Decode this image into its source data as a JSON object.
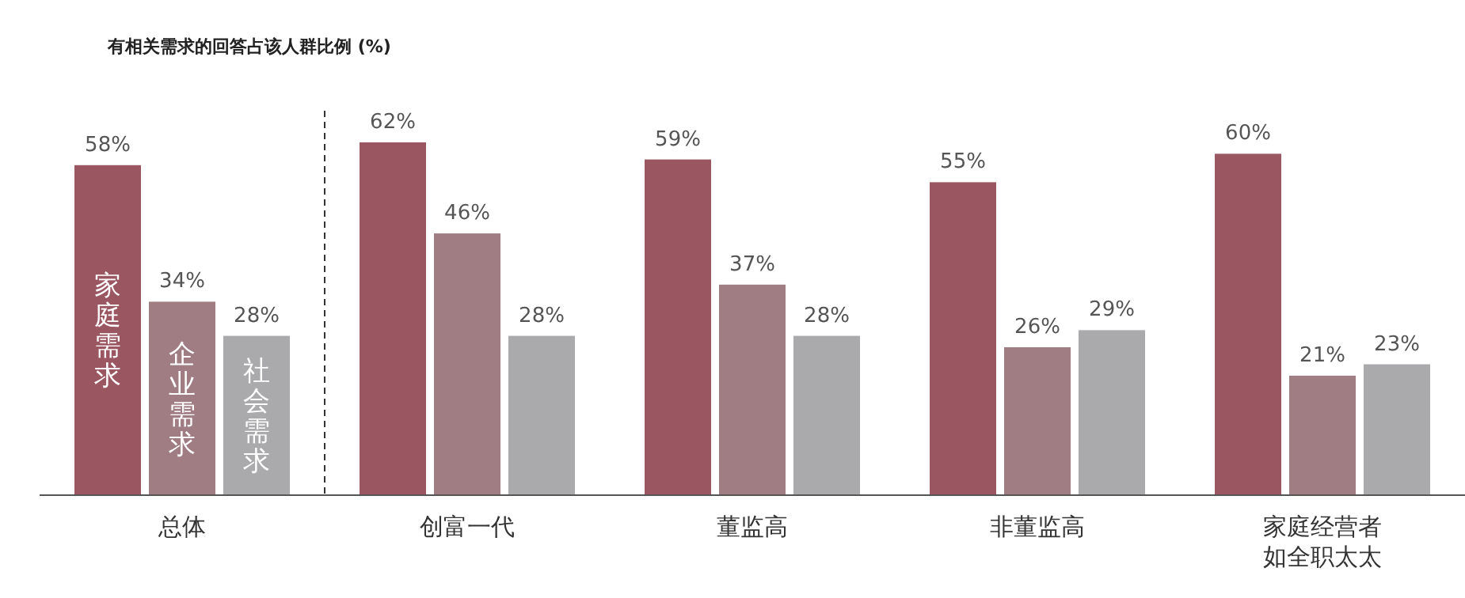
{
  "chart_data": {
    "type": "bar",
    "title": "有相关需求的回答占该人群比例 (%)",
    "categories": [
      "总体",
      "创富一代",
      "董监高",
      "非董监高",
      "家庭经营者如全职太太"
    ],
    "series": [
      {
        "name": "家庭需求",
        "color": "#9b5761",
        "values": [
          58,
          62,
          59,
          55,
          60
        ],
        "value_labels": [
          "58%",
          "62%",
          "59%",
          "55%",
          "60%"
        ]
      },
      {
        "name": "企业需求",
        "color": "#a07c83",
        "values": [
          34,
          46,
          37,
          26,
          21
        ],
        "value_labels": [
          "34%",
          "46%",
          "37%",
          "26%",
          "21%"
        ]
      },
      {
        "name": "社会需求",
        "color": "#aaa9ab",
        "values": [
          28,
          28,
          28,
          29,
          23
        ],
        "value_labels": [
          "28%",
          "28%",
          "28%",
          "29%",
          "23%"
        ]
      }
    ],
    "legend": false
  }
}
